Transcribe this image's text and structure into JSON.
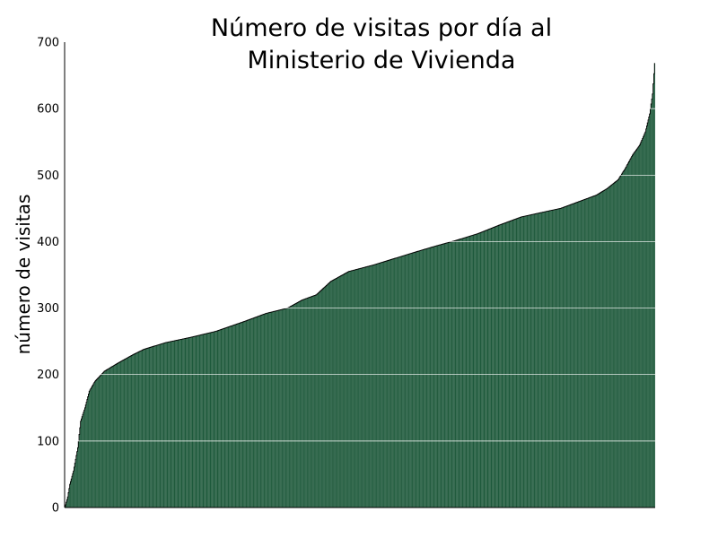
{
  "chart_data": {
    "type": "bar",
    "title_lines": [
      "Número de visitas por día al",
      "Ministerio de Vivienda"
    ],
    "xlabel": "",
    "ylabel": "número de visitas",
    "ylim": [
      0,
      700
    ],
    "yticks": [
      "0",
      "100",
      "200",
      "300",
      "400",
      "500",
      "600",
      "700"
    ],
    "grid": true,
    "sorted_ascending": true,
    "profile": [
      [
        0,
        0
      ],
      [
        4,
        16
      ],
      [
        7,
        35
      ],
      [
        12,
        55
      ],
      [
        18,
        90
      ],
      [
        22,
        130
      ],
      [
        28,
        150
      ],
      [
        34,
        175
      ],
      [
        42,
        190
      ],
      [
        55,
        205
      ],
      [
        75,
        218
      ],
      [
        95,
        230
      ],
      [
        110,
        238
      ],
      [
        140,
        248
      ],
      [
        175,
        256
      ],
      [
        210,
        265
      ],
      [
        250,
        280
      ],
      [
        280,
        292
      ],
      [
        310,
        300
      ],
      [
        330,
        312
      ],
      [
        350,
        320
      ],
      [
        370,
        340
      ],
      [
        395,
        355
      ],
      [
        430,
        365
      ],
      [
        460,
        375
      ],
      [
        490,
        385
      ],
      [
        515,
        393
      ],
      [
        545,
        402
      ],
      [
        575,
        412
      ],
      [
        605,
        425
      ],
      [
        635,
        437
      ],
      [
        660,
        443
      ],
      [
        690,
        450
      ],
      [
        715,
        460
      ],
      [
        740,
        470
      ],
      [
        755,
        480
      ],
      [
        770,
        493
      ],
      [
        780,
        510
      ],
      [
        790,
        530
      ],
      [
        800,
        545
      ],
      [
        808,
        565
      ],
      [
        814,
        592
      ],
      [
        818,
        622
      ],
      [
        821,
        668
      ]
    ],
    "count": 822,
    "colors": {
      "bar": "#1f5a3c",
      "edge": "#000000",
      "grid": "#ffffff",
      "axis": "#000000"
    }
  }
}
